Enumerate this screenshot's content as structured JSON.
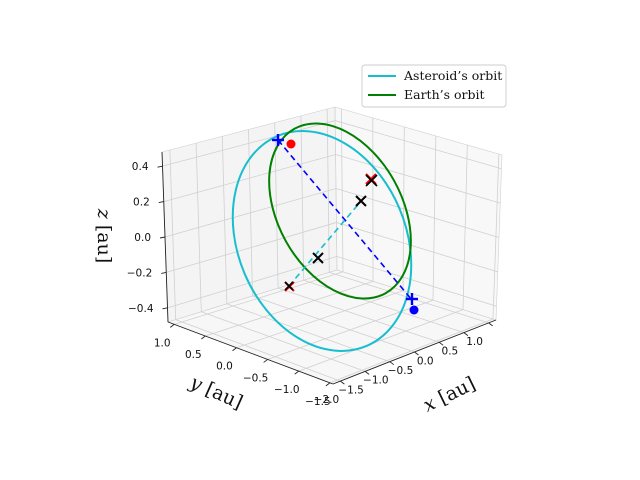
{
  "chart_data": {
    "type": "line",
    "projection": "3d",
    "title": "",
    "xlabel": "$x$ [au]",
    "ylabel": "$y$ [au]",
    "zlabel": "$z$ [au]",
    "xlabel_parts": [
      "x",
      " [au]"
    ],
    "ylabel_parts": [
      "y",
      " [au]"
    ],
    "zlabel_parts": [
      "z",
      " [au]"
    ],
    "x_ticks": [
      "−2.0",
      "−1.5",
      "−1.0",
      "−0.5",
      "0.0",
      "0.5",
      "1.0"
    ],
    "y_ticks": [
      "1.0",
      "0.5",
      "0.0",
      "−0.5",
      "−1.0",
      "−1.5"
    ],
    "z_ticks": [
      "0.4",
      "0.2",
      "0.0",
      "−0.2",
      "−0.4"
    ],
    "xlim": [
      -2.15,
      1.15
    ],
    "ylim": [
      -1.55,
      1.1
    ],
    "zlim": [
      -0.48,
      0.48
    ],
    "grid": true,
    "legend_position": "top-right",
    "series": [
      {
        "name": "Asteroid’s orbit",
        "color": "#17becf",
        "style": "solid"
      },
      {
        "name": "Earth’s orbit",
        "color": "#008000",
        "style": "solid"
      }
    ],
    "markers": [
      {
        "kind": "red-dot",
        "color": "#ff0000"
      },
      {
        "kind": "blue-dot",
        "color": "#0000ff"
      },
      {
        "kind": "blue-plus",
        "color": "#0000ff"
      },
      {
        "kind": "blue-plus",
        "color": "#0000ff"
      },
      {
        "kind": "red-x",
        "color": "#ff0000"
      },
      {
        "kind": "red-x",
        "color": "#ff0000"
      },
      {
        "kind": "black-x",
        "color": "#000000"
      },
      {
        "kind": "black-x",
        "color": "#000000"
      },
      {
        "kind": "black-x",
        "color": "#000000"
      },
      {
        "kind": "black-x",
        "color": "#000000"
      }
    ],
    "connectors": [
      {
        "kind": "blue-dashed",
        "color": "#0000ff"
      },
      {
        "kind": "cyan-dashed",
        "color": "#17becf"
      }
    ]
  }
}
